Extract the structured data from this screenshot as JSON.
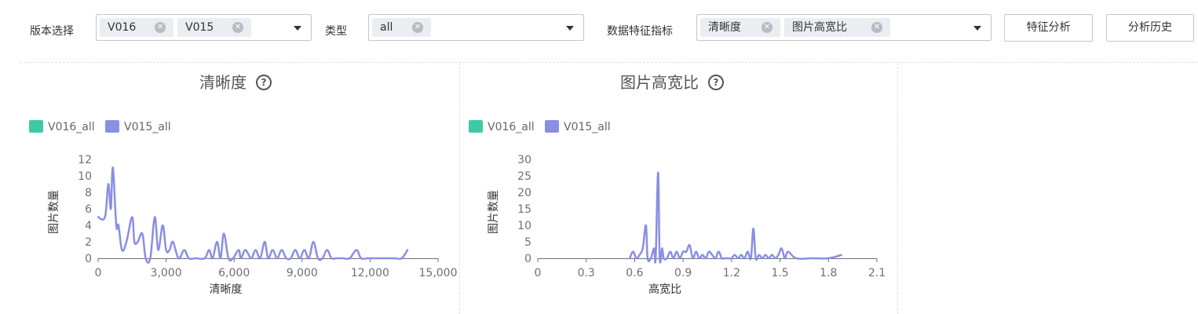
{
  "filters": {
    "version": {
      "label": "版本选择",
      "tags": [
        "V016",
        "V015"
      ]
    },
    "type": {
      "label": "类型",
      "tags": [
        "all"
      ]
    },
    "metric": {
      "label": "数据特征指标",
      "tags": [
        "清晰度",
        "图片高宽比"
      ]
    }
  },
  "buttons": {
    "analyze": "特征分析",
    "history": "分析历史"
  },
  "icons": {
    "tag_close": "close-circle-icon",
    "dropdown": "chevron-down-icon",
    "help": "question-circle-icon"
  },
  "colors": {
    "series_v016": "#3ec9a7",
    "series_v015": "#8a8fe3",
    "axis": "#6e7079"
  },
  "chart_data": [
    {
      "type": "line",
      "title": "清晰度",
      "xlabel": "清晰度",
      "ylabel": "图片数量",
      "xlim": [
        0,
        15000
      ],
      "ylim": [
        0,
        12
      ],
      "xticks": [
        "0",
        "3,000",
        "6,000",
        "9,000",
        "12,000",
        "15,000"
      ],
      "yticks": [
        "0",
        "2",
        "4",
        "6",
        "8",
        "10",
        "12"
      ],
      "legend_position": "top-left",
      "grid": false,
      "smooth": true,
      "series": [
        {
          "name": "V016_all",
          "color": "#3ec9a7",
          "x": [],
          "y": []
        },
        {
          "name": "V015_all",
          "color": "#8a8fe3",
          "x": [
            0,
            300,
            450,
            560,
            650,
            800,
            900,
            1050,
            1250,
            1500,
            1600,
            1750,
            1950,
            2100,
            2300,
            2500,
            2650,
            2850,
            3000,
            3150,
            3300,
            3550,
            3800,
            4000,
            4300,
            4700,
            4900,
            5050,
            5250,
            5400,
            5550,
            5750,
            5950,
            6200,
            6300,
            6500,
            6750,
            6950,
            7150,
            7350,
            7500,
            7700,
            7900,
            8100,
            8300,
            8500,
            8700,
            8900,
            9100,
            9300,
            9500,
            9700,
            9900,
            10100,
            10300,
            10500,
            10800,
            11100,
            11400,
            11600,
            11900,
            12200,
            12500,
            12800,
            13100,
            13400,
            13650
          ],
          "y": [
            5,
            5,
            9,
            6,
            11,
            4,
            4,
            1,
            2,
            5,
            2,
            2,
            3,
            0,
            0,
            5,
            1,
            4,
            1,
            1,
            2,
            0,
            1,
            0,
            0,
            0,
            1,
            0,
            2,
            0,
            3,
            0,
            0,
            1,
            0,
            1,
            0,
            1,
            0,
            2,
            0,
            1,
            0,
            1,
            0,
            0,
            1,
            0,
            1,
            0,
            2,
            0,
            0,
            1,
            0,
            0,
            0,
            0,
            1,
            0,
            0,
            0,
            0,
            0,
            0,
            0,
            1
          ]
        }
      ]
    },
    {
      "type": "line",
      "title": "图片高宽比",
      "xlabel": "高宽比",
      "ylabel": "图片数量",
      "xlim": [
        0,
        2.1
      ],
      "ylim": [
        0,
        30
      ],
      "xticks": [
        "0",
        "0.3",
        "0.6",
        "0.9",
        "1.2",
        "1.5",
        "1.8",
        "2.1"
      ],
      "yticks": [
        "0",
        "5",
        "10",
        "15",
        "20",
        "25",
        "30"
      ],
      "legend_position": "top-left",
      "grid": false,
      "smooth": true,
      "series": [
        {
          "name": "V016_all",
          "color": "#3ec9a7",
          "x": [],
          "y": []
        },
        {
          "name": "V015_all",
          "color": "#8a8fe3",
          "x": [
            0.57,
            0.59,
            0.61,
            0.63,
            0.65,
            0.67,
            0.68,
            0.7,
            0.72,
            0.73,
            0.745,
            0.755,
            0.77,
            0.78,
            0.8,
            0.82,
            0.84,
            0.86,
            0.88,
            0.9,
            0.92,
            0.94,
            0.96,
            0.98,
            1.0,
            1.02,
            1.04,
            1.06,
            1.08,
            1.1,
            1.12,
            1.14,
            1.16,
            1.18,
            1.2,
            1.22,
            1.24,
            1.26,
            1.28,
            1.3,
            1.32,
            1.335,
            1.35,
            1.37,
            1.39,
            1.41,
            1.43,
            1.45,
            1.47,
            1.49,
            1.51,
            1.53,
            1.55,
            1.6,
            1.7,
            1.8,
            1.88
          ],
          "y": [
            0,
            2,
            0,
            1,
            3,
            10,
            0,
            0,
            3,
            0,
            26,
            0,
            3,
            0,
            0,
            2,
            0,
            2,
            0,
            2,
            2,
            4,
            0,
            2,
            0,
            1,
            0,
            2,
            1,
            0,
            2,
            0,
            0,
            0,
            0,
            1,
            0,
            1,
            0,
            2,
            0,
            9,
            0,
            1,
            0,
            1,
            0,
            1,
            0,
            1,
            3,
            0,
            2,
            0,
            0,
            0,
            1
          ]
        }
      ]
    }
  ]
}
